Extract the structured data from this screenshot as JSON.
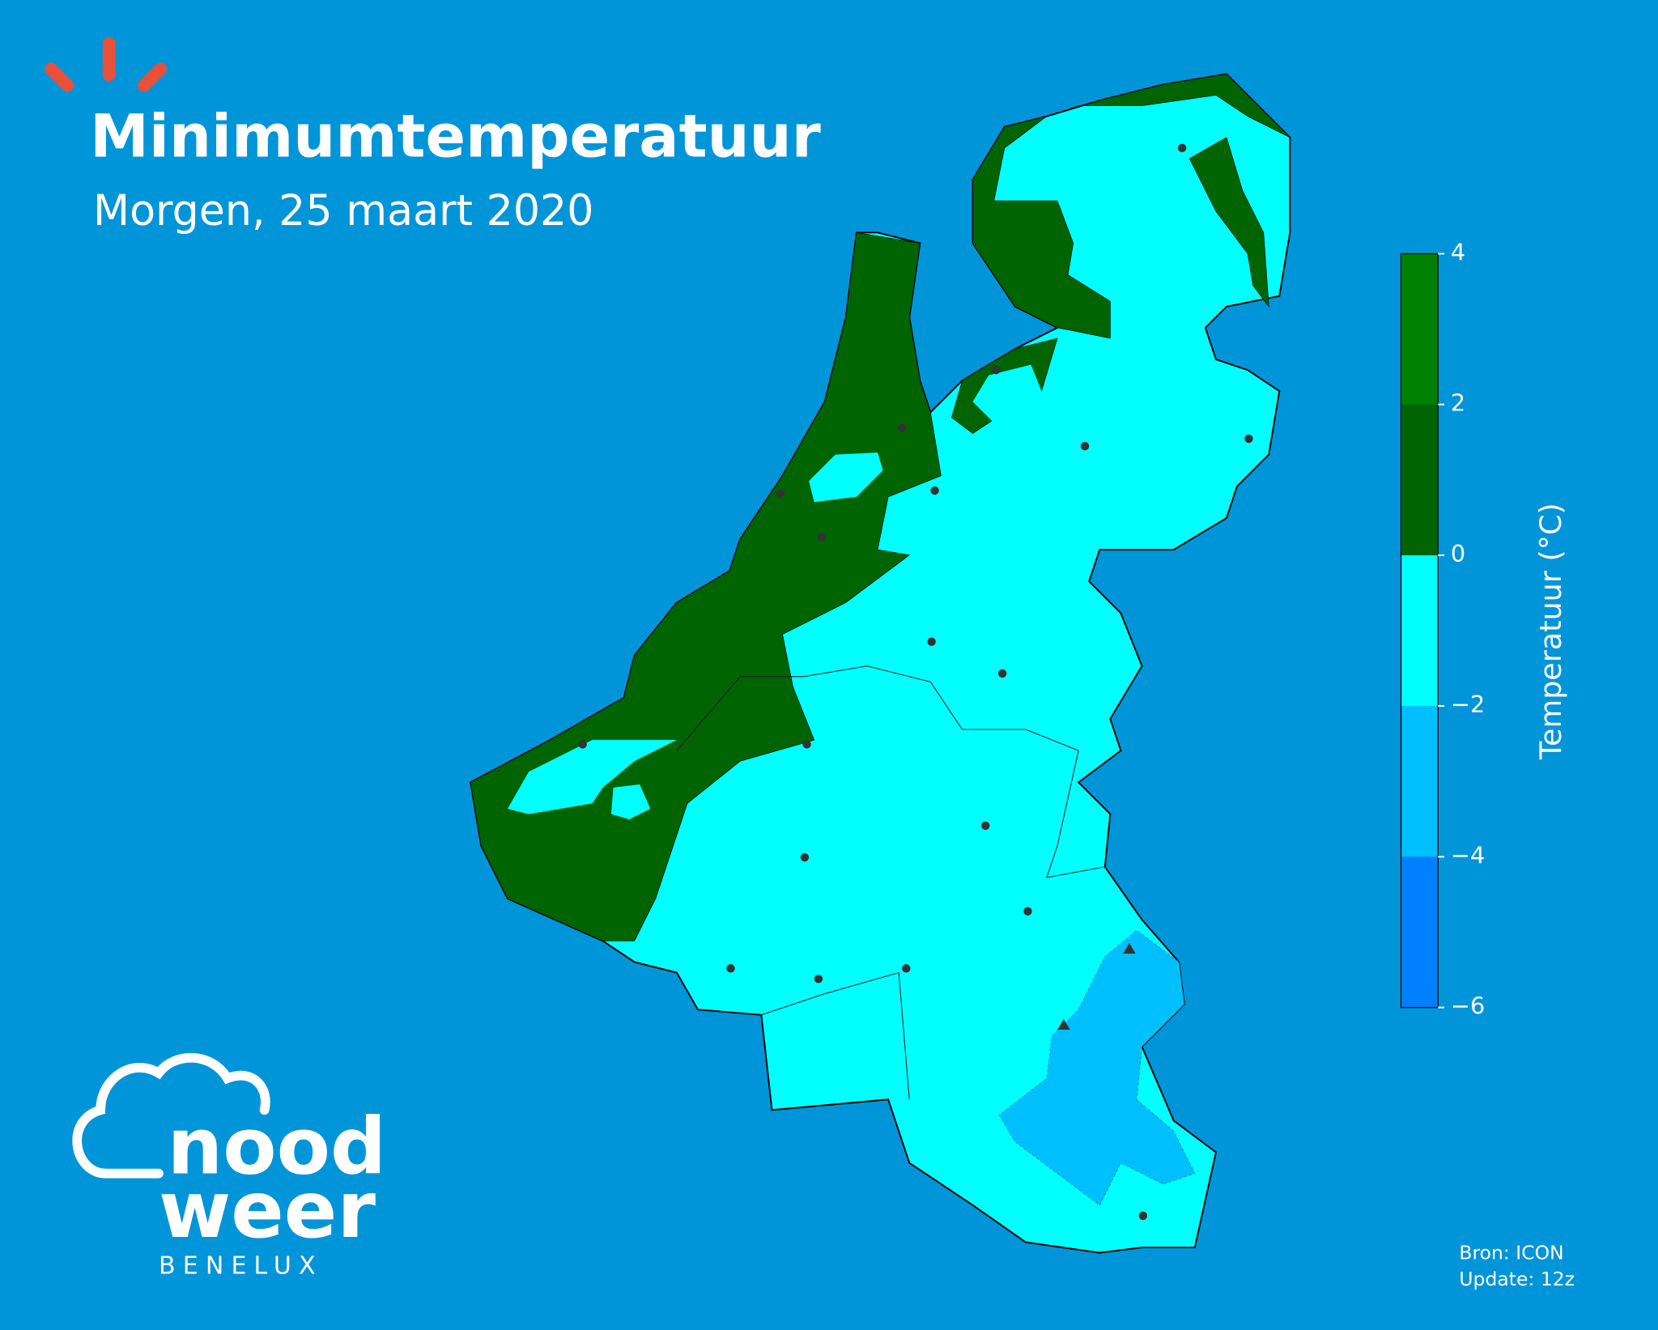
{
  "header": {
    "title": "Minimumtemperatuur",
    "subtitle": "Morgen, 25 maart 2020"
  },
  "colorbar": {
    "label": "Temperatuur (°C)",
    "ticks": [
      {
        "value": -6,
        "label": "−6"
      },
      {
        "value": -4,
        "label": "−4"
      },
      {
        "value": -2,
        "label": "−2"
      },
      0,
      2,
      4
    ],
    "lim": [
      -6,
      4
    ],
    "colors": [
      "#0080ff",
      "#00bfff",
      "#00ffff",
      "#006400",
      "#008000"
    ]
  },
  "footer": {
    "source": "Bron: ICON",
    "update": "Update: 12z"
  },
  "logo": {
    "line1": "nood",
    "line2": "weer",
    "line3": "BENELUX"
  }
}
